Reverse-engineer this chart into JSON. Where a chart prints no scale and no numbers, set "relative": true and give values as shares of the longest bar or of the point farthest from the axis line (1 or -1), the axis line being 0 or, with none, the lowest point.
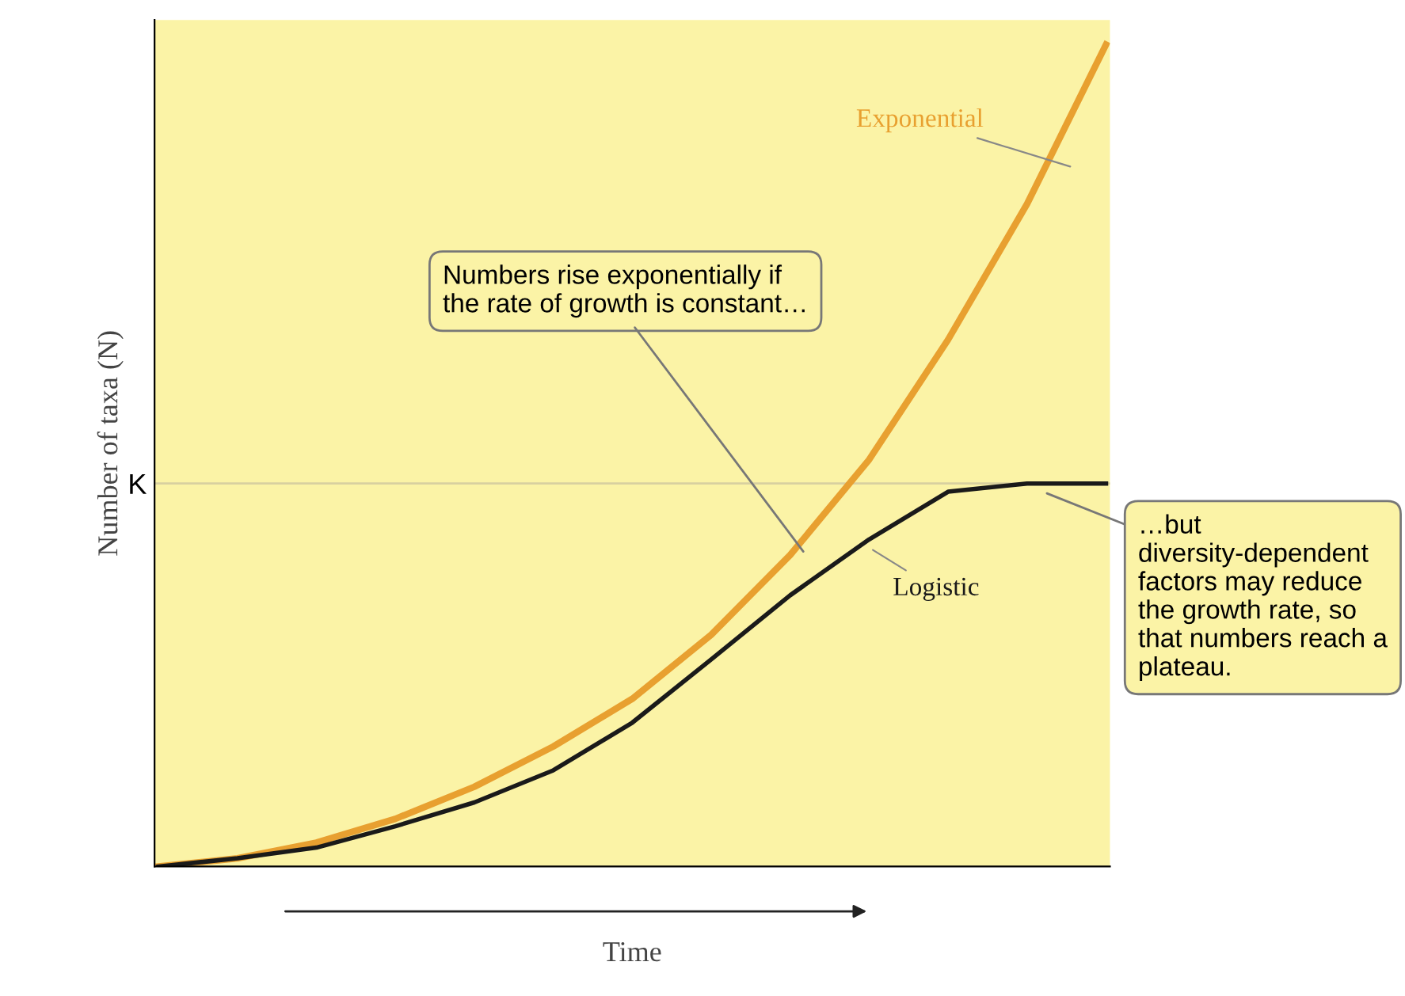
{
  "chart_data": {
    "type": "line",
    "relative": true,
    "ylabel": "Number of taxa (N)",
    "xlabel": "Time",
    "categories": [
      null,
      null,
      null,
      null,
      null,
      null,
      null,
      null,
      null,
      null,
      null,
      null,
      null
    ],
    "series": [
      {
        "name": "Exponential",
        "color": "#e8a030",
        "values": [
          0,
          0.01,
          0.029,
          0.058,
          0.097,
          0.146,
          0.204,
          0.282,
          0.379,
          0.495,
          0.641,
          0.806,
          1
        ]
      },
      {
        "name": "Logistic",
        "color": "#1a1a1a",
        "values": [
          0,
          0.01,
          0.023,
          0.049,
          0.078,
          0.117,
          0.175,
          0.252,
          0.33,
          0.398,
          0.456,
          0.466,
          0.466
        ]
      }
    ],
    "ref_lines": [
      {
        "axis": "y",
        "value": 0.466,
        "label": "K",
        "color": "#d8d0a0"
      }
    ],
    "annotations": [
      "Numbers rise exponentially if the rate of growth is constant…",
      "…but diversity-dependent factors may reduce the growth rate, so that numbers reach a plateau."
    ],
    "grid": false,
    "legend": false,
    "marker": "none",
    "line_style": "solid"
  }
}
